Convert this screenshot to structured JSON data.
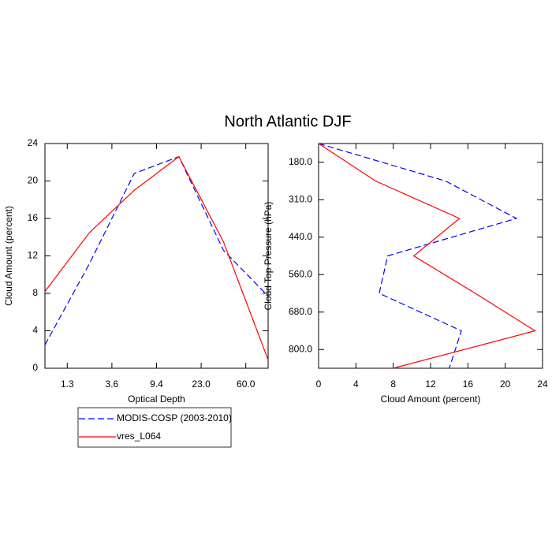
{
  "title": "North Atlantic DJF",
  "chart_data": [
    {
      "type": "line",
      "orientation": "vertical",
      "x_label": "Optical Depth",
      "y_label": "Cloud Amount (percent)",
      "x": [
        0,
        1,
        2,
        3,
        4,
        5
      ],
      "xlim": [
        0,
        5
      ],
      "xticks": [
        {
          "value": 0.5,
          "label": "1.3"
        },
        {
          "value": 1.5,
          "label": "3.6"
        },
        {
          "value": 2.5,
          "label": "9.4"
        },
        {
          "value": 3.5,
          "label": "23.0"
        },
        {
          "value": 4.5,
          "label": "60.0"
        }
      ],
      "ylim": [
        0,
        24
      ],
      "yticks": [
        0,
        4,
        8,
        12,
        16,
        20,
        24
      ],
      "legend": "below",
      "series": [
        {
          "name": "MODIS-COSP (2003-2010)",
          "color": "#0000ff",
          "dash": true,
          "values": [
            2.5,
            11.2,
            20.8,
            22.6,
            12.6,
            7.7
          ]
        },
        {
          "name": "vres_L064",
          "color": "#ff0000",
          "dash": false,
          "values": [
            8.2,
            14.5,
            19.0,
            22.6,
            13.5,
            0.9
          ]
        }
      ]
    },
    {
      "type": "line",
      "orientation": "horizontal",
      "x_label": "Cloud Amount (percent)",
      "y_label": "Cloud Top Pressure (hPa)",
      "y": [
        0,
        1,
        2,
        3,
        4,
        5,
        6
      ],
      "ylim": [
        6,
        0
      ],
      "yticks": [
        {
          "value": 0.5,
          "label": "180.0"
        },
        {
          "value": 1.5,
          "label": "310.0"
        },
        {
          "value": 2.5,
          "label": "440.0"
        },
        {
          "value": 3.5,
          "label": "560.0"
        },
        {
          "value": 4.5,
          "label": "680.0"
        },
        {
          "value": 5.5,
          "label": "800.0"
        }
      ],
      "xlim": [
        0,
        24
      ],
      "xticks": [
        0,
        4,
        8,
        12,
        16,
        20,
        24
      ],
      "series": [
        {
          "color": "#0000ff",
          "dash": true,
          "values": [
            0,
            13.6,
            21.2,
            7.4,
            6.5,
            15.3,
            14.0
          ]
        },
        {
          "color": "#ff0000",
          "dash": false,
          "values": [
            0,
            6.1,
            15.1,
            10.2,
            16.8,
            23.2,
            8.0
          ]
        }
      ]
    }
  ]
}
